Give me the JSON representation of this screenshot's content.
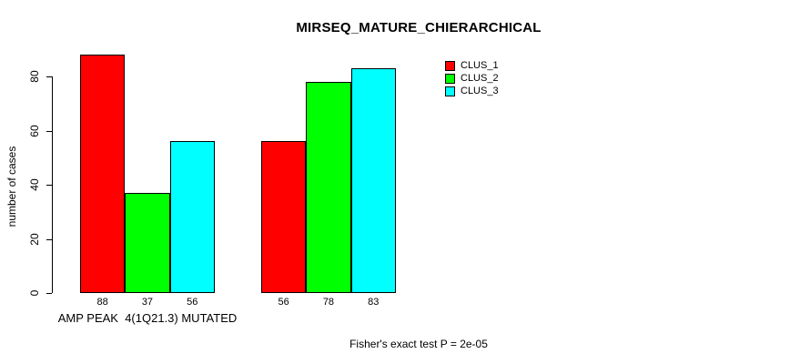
{
  "chart_data": {
    "type": "bar",
    "title": "MIRSEQ_MATURE_CHIERARCHICAL",
    "ylabel": "number of cases",
    "footnote": "Fisher's exact test P = 2e-05",
    "categories": [
      "AMP PEAK  4(1Q21.3) MUTATED",
      ""
    ],
    "series": [
      {
        "name": "CLUS_1",
        "color": "#ff0000",
        "values": [
          88,
          56
        ]
      },
      {
        "name": "CLUS_2",
        "color": "#00ff00",
        "values": [
          37,
          78
        ]
      },
      {
        "name": "CLUS_3",
        "color": "#00ffff",
        "values": [
          56,
          83
        ]
      }
    ],
    "yticks": [
      0,
      20,
      40,
      60,
      80
    ],
    "ylim": [
      0,
      88
    ],
    "bar_value_labels": [
      [
        88,
        37,
        56
      ],
      [
        56,
        78,
        83
      ]
    ],
    "legend_position": "top-right",
    "grid": false,
    "colors": {
      "bar_border": "#000000",
      "text": "#000000",
      "background": "#ffffff"
    }
  }
}
